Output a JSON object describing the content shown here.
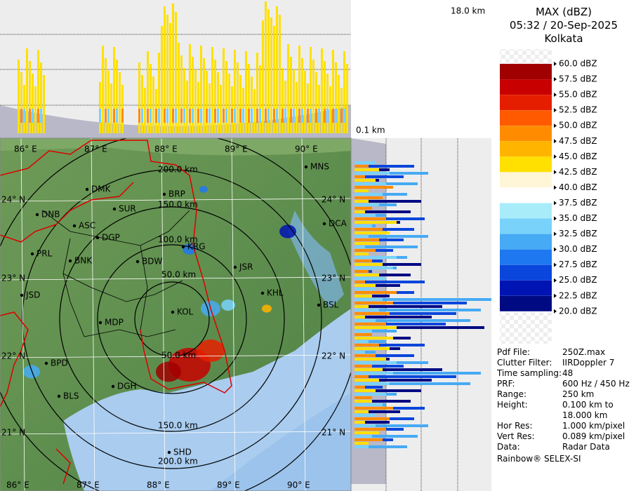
{
  "header": {
    "title": "MAX (dBZ)",
    "time": "05:32 / 20-Sep-2025",
    "site": "Kolkata"
  },
  "legend": {
    "labels": [
      "60.0 dBZ",
      "57.5 dBZ",
      "55.0 dBZ",
      "52.5 dBZ",
      "50.0 dBZ",
      "47.5 dBZ",
      "45.0 dBZ",
      "42.5 dBZ",
      "40.0 dBZ",
      "37.5 dBZ",
      "35.0 dBZ",
      "32.5 dBZ",
      "30.0 dBZ",
      "27.5 dBZ",
      "25.0 dBZ",
      "22.5 dBZ",
      "20.0 dBZ"
    ],
    "colors": [
      "#f4f4f4",
      "#a00000",
      "#c80000",
      "#e61e00",
      "#ff5a00",
      "#ff8c00",
      "#ffb400",
      "#ffe000",
      "#fff6d8",
      "#ffffff",
      "#a8ecfa",
      "#78d2fa",
      "#46aaf5",
      "#1e78f0",
      "#0a46dc",
      "#0014b4",
      "#000a82"
    ]
  },
  "profile": {
    "top_label": "18.0 km",
    "bottom_label": "0.1 km"
  },
  "map": {
    "cities": [
      "MNS",
      "DMK",
      "BRP",
      "DNB",
      "SUR",
      "ASC",
      "DCA",
      "DGP",
      "KRG",
      "PRL",
      "BNK",
      "BDW",
      "JSR",
      "KHL",
      "JSD",
      "BSL",
      "KOL",
      "MDP",
      "BPD",
      "DGH",
      "BLS",
      "SHD"
    ],
    "ranges": [
      "200.0 km",
      "150.0 km",
      "100.0 km",
      "50.0 km",
      "50.0 km",
      "150.0 km",
      "200.0 km"
    ],
    "lon_labels": [
      "86° E",
      "87° E",
      "88° E",
      "89° E",
      "90° E"
    ],
    "lat_labels": [
      "24° N",
      "23° N",
      "22° N",
      "21° N"
    ]
  },
  "info": {
    "rows": [
      {
        "label": "Pdf File:",
        "value": "250Z.max"
      },
      {
        "label": "Clutter Filter:",
        "value": "IIRDoppler 7"
      },
      {
        "label": "Time sampling:",
        "value": "48"
      },
      {
        "label": "PRF:",
        "value": "600 Hz / 450 Hz"
      },
      {
        "label": "Range:",
        "value": "250 km"
      },
      {
        "label": "Height:",
        "value": "0.100 km to 18.000 km"
      },
      {
        "label": "Hor Res:",
        "value": "1.000 km/pixel"
      },
      {
        "label": "Vert Res:",
        "value": "0.089 km/pixel"
      },
      {
        "label": "Data:",
        "value": "Radar Data"
      }
    ],
    "footer": "Rainbow® SELEX-SI"
  }
}
